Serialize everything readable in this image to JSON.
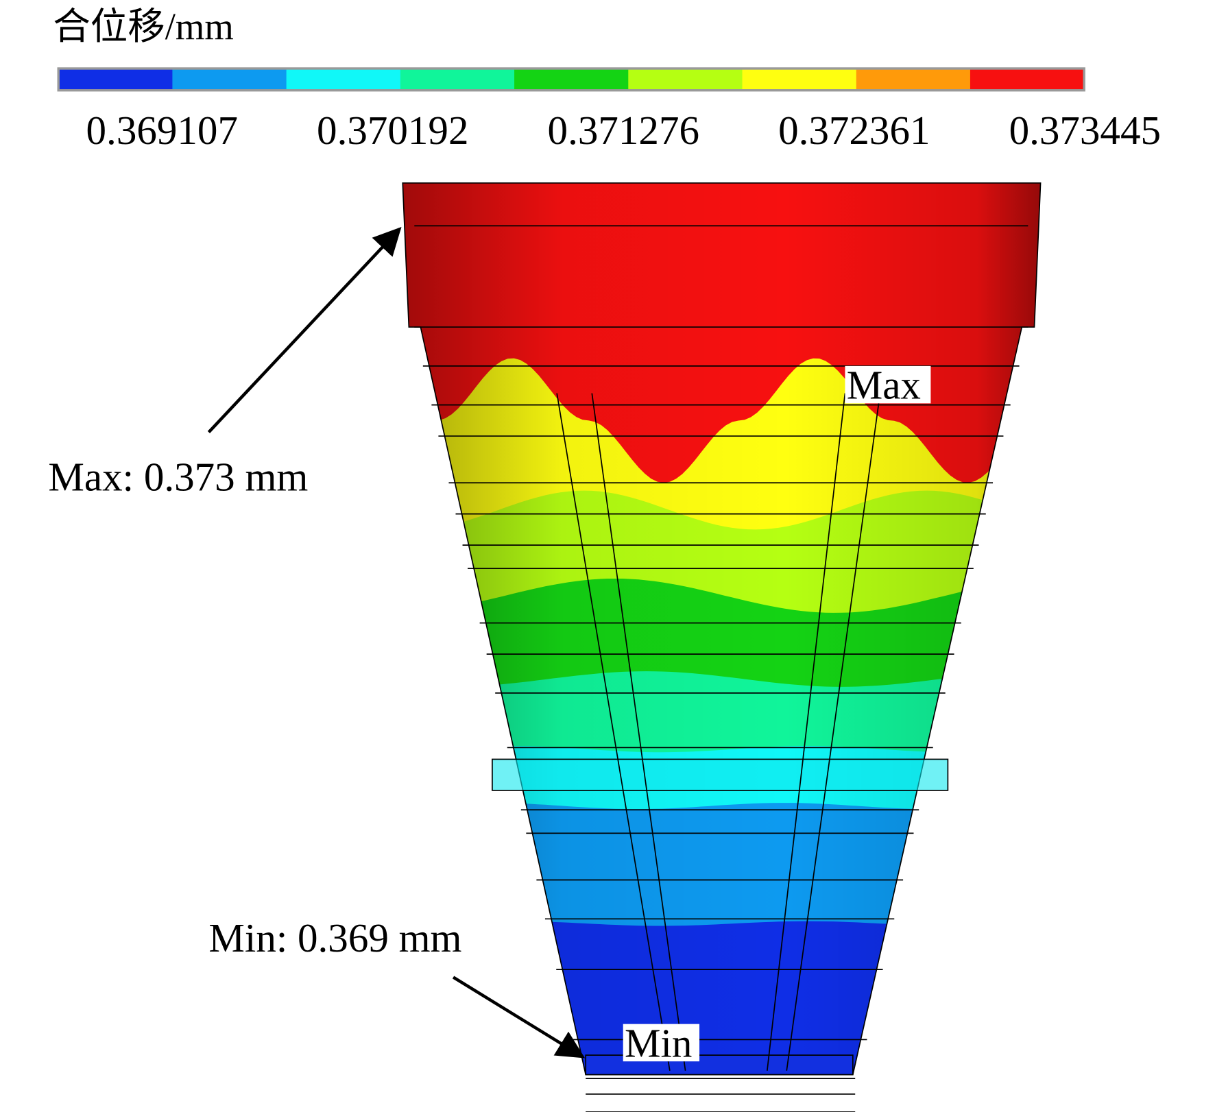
{
  "legend": {
    "title": "合位移/mm",
    "colors": [
      "#0f2ee6",
      "#0d9af0",
      "#10f8f8",
      "#10f59a",
      "#14d314",
      "#b5ff12",
      "#ffff10",
      "#ff9a0a",
      "#f71010"
    ],
    "labels": [
      "0.369107",
      "0.370192",
      "0.371276",
      "0.372361",
      "0.373445"
    ]
  },
  "annotations": {
    "max_label": "Max: 0.373 mm",
    "min_label": "Min: 0.369 mm",
    "max_tag": "Max",
    "min_tag": "Min"
  }
}
